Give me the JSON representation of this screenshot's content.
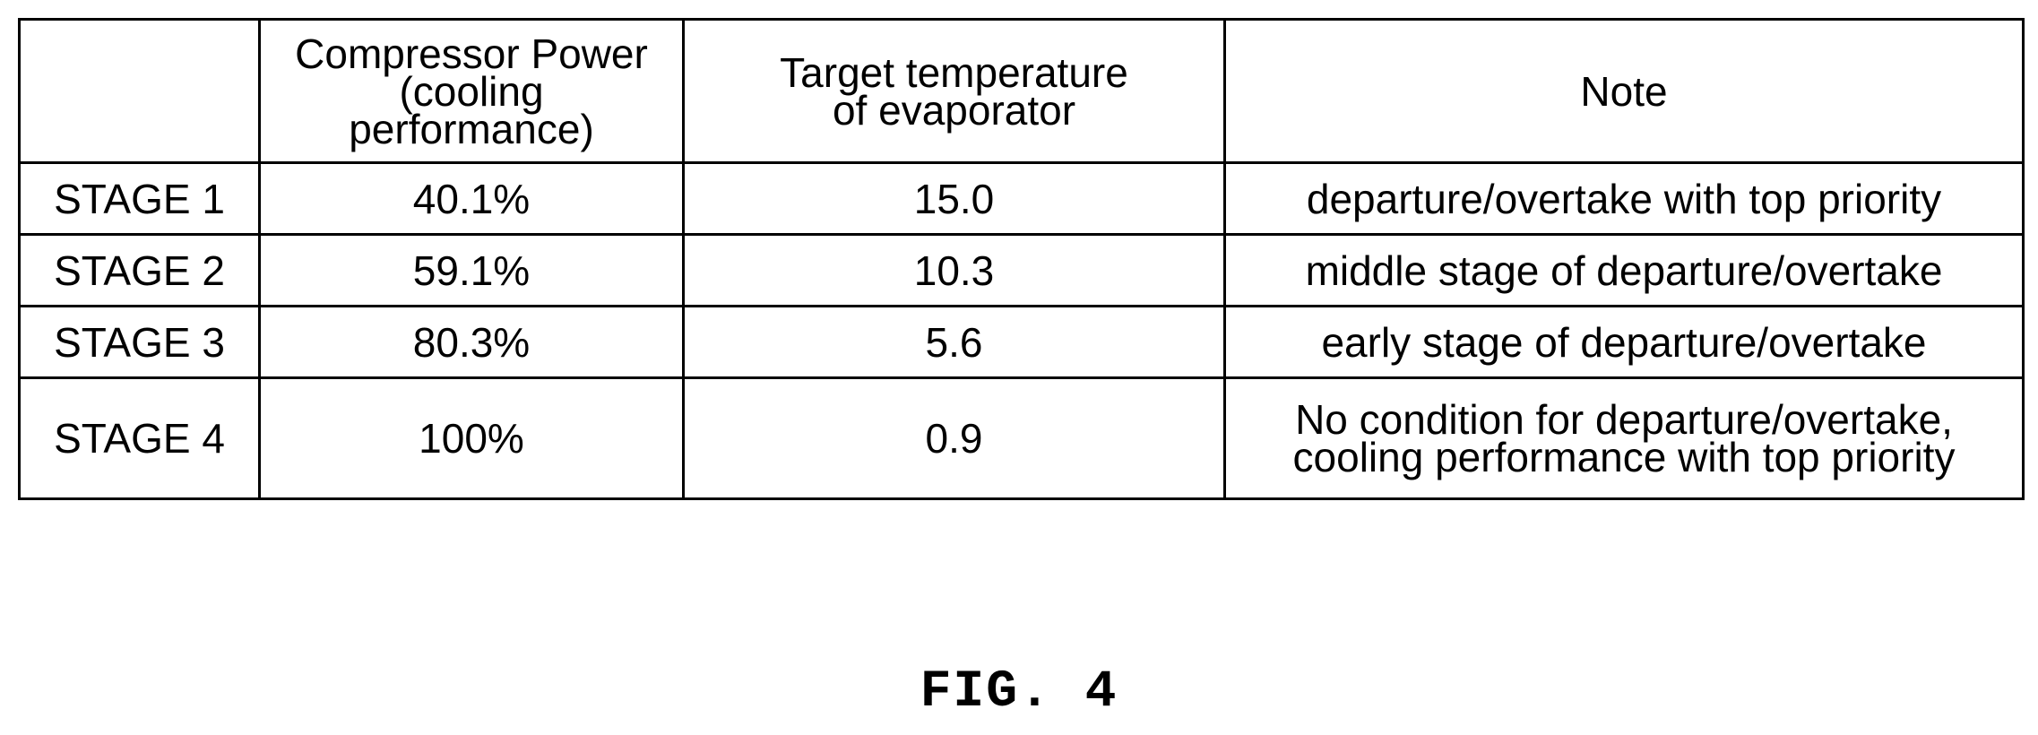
{
  "table": {
    "headers": {
      "stage": "",
      "compressor_power": [
        "Compressor Power",
        "(cooling",
        "performance)"
      ],
      "target_temperature": [
        "Target temperature",
        "of evaporator"
      ],
      "note": "Note"
    },
    "rows": [
      {
        "stage": "STAGE 1",
        "compressor_power": "40.1%",
        "target_temperature": "15.0",
        "note": [
          "departure/overtake with top priority"
        ]
      },
      {
        "stage": "STAGE 2",
        "compressor_power": "59.1%",
        "target_temperature": "10.3",
        "note": [
          "middle stage of departure/overtake"
        ]
      },
      {
        "stage": "STAGE 3",
        "compressor_power": "80.3%",
        "target_temperature": "5.6",
        "note": [
          "early stage of departure/overtake"
        ]
      },
      {
        "stage": "STAGE 4",
        "compressor_power": "100%",
        "target_temperature": "0.9",
        "note": [
          "No condition for departure/overtake,",
          "cooling performance with top priority"
        ]
      }
    ]
  },
  "figure_label": "FIG. 4"
}
